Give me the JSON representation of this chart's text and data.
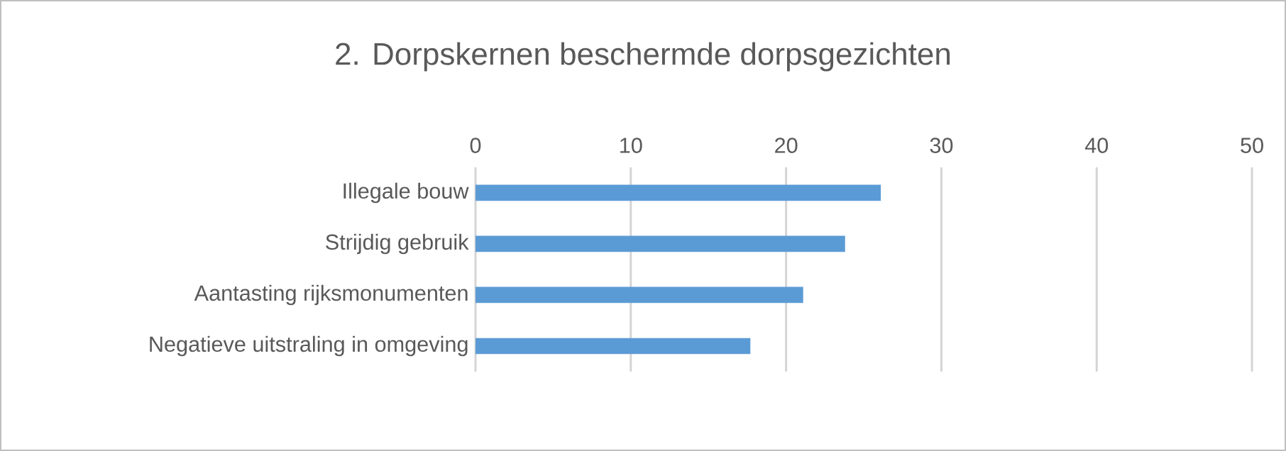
{
  "chart_data": {
    "type": "bar",
    "orientation": "horizontal",
    "title": "2. Dorpskernen beschermde dorpsgezichten",
    "categories": [
      "Illegale bouw",
      "Strijdig gebruik",
      "Aantasting rijksmonumenten",
      "Negatieve uitstraling in omgeving"
    ],
    "values": [
      26.1,
      23.8,
      21.1,
      17.7
    ],
    "color": "#5b9bd5",
    "xlim": [
      0,
      50
    ],
    "xticks": [
      0,
      10,
      20,
      30,
      40,
      50
    ],
    "grid": "x"
  }
}
